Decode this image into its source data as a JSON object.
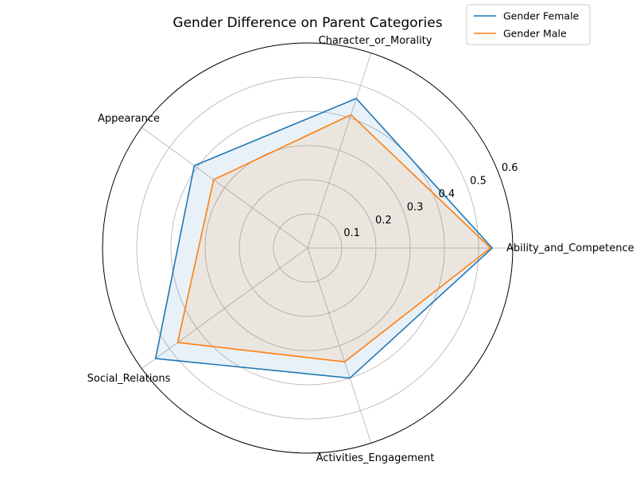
{
  "chart_data": {
    "type": "radar",
    "title": "Gender Difference on Parent Categories",
    "categories": [
      "Ability_and_Competence",
      "Character_or_Morality",
      "Appearance",
      "Social_Relations",
      "Activities_Engagement"
    ],
    "series": [
      {
        "name": "Gender Female",
        "color": "#1f77b4",
        "values": [
          0.54,
          0.46,
          0.41,
          0.55,
          0.4
        ]
      },
      {
        "name": "Gender Male",
        "color": "#ff7f0e",
        "values": [
          0.535,
          0.41,
          0.34,
          0.47,
          0.35
        ]
      }
    ],
    "radial_ticks": [
      "0.1",
      "0.2",
      "0.3",
      "0.4",
      "0.5",
      "0.6"
    ],
    "radial_tick_values": [
      0.1,
      0.2,
      0.3,
      0.4,
      0.5,
      0.6
    ],
    "rlim": [
      0,
      0.6
    ],
    "grid": true,
    "legend_position": "top-right"
  }
}
